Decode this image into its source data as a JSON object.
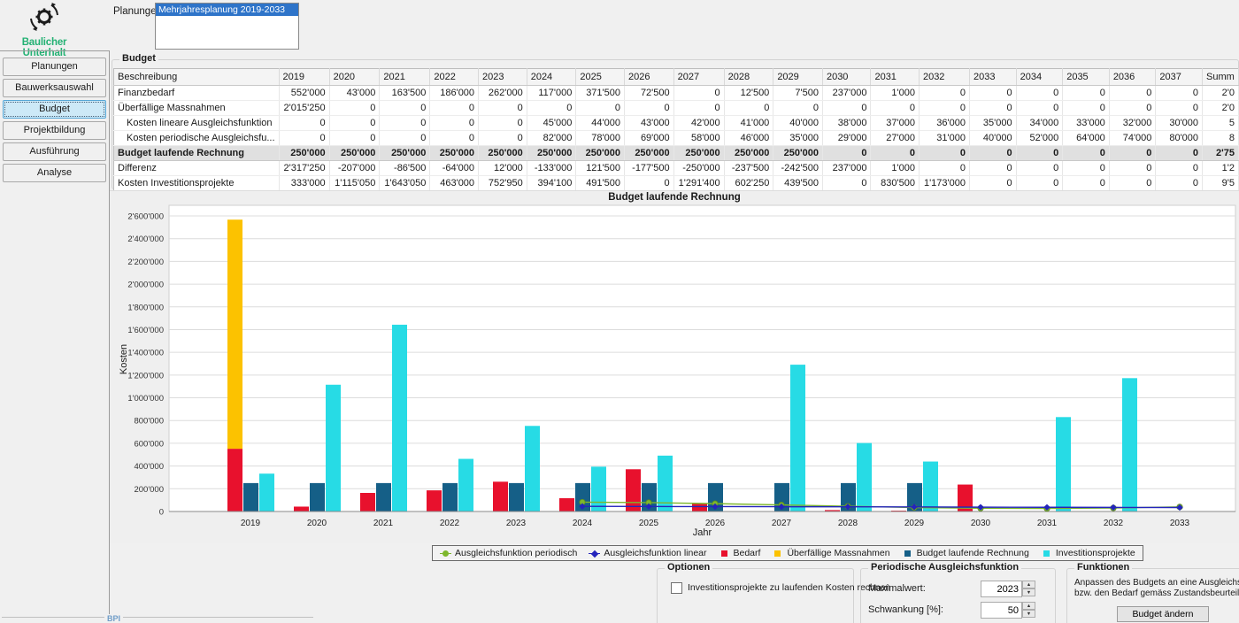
{
  "app": {
    "logo_text": "Baulicher Unterhalt",
    "accent_green": "#23b173"
  },
  "planungen": {
    "label": "Planungen:",
    "selected_item": "Mehrjahresplanung 2019-2033"
  },
  "sidebar": {
    "items": [
      {
        "id": "planungen",
        "label": "Planungen",
        "active": false
      },
      {
        "id": "bauwerksauswahl",
        "label": "Bauwerksauswahl",
        "active": false
      },
      {
        "id": "budget",
        "label": "Budget",
        "active": true
      },
      {
        "id": "projektbildung",
        "label": "Projektbildung",
        "active": false
      },
      {
        "id": "ausfuehrung",
        "label": "Ausführung",
        "active": false
      },
      {
        "id": "analyse",
        "label": "Analyse",
        "active": false
      }
    ]
  },
  "budget_group": {
    "title": "Budget"
  },
  "table": {
    "columns": [
      "Beschreibung",
      "2019",
      "2020",
      "2021",
      "2022",
      "2023",
      "2024",
      "2025",
      "2026",
      "2027",
      "2028",
      "2029",
      "2030",
      "2031",
      "2032",
      "2033",
      "2034",
      "2035",
      "2036",
      "2037",
      "Summ"
    ],
    "rows": [
      {
        "label": "Finanzbedarf",
        "indent": false,
        "bold": false,
        "values": [
          "552'000",
          "43'000",
          "163'500",
          "186'000",
          "262'000",
          "117'000",
          "371'500",
          "72'500",
          "0",
          "12'500",
          "7'500",
          "237'000",
          "1'000",
          "0",
          "0",
          "0",
          "0",
          "0",
          "0"
        ],
        "summ": "2'0"
      },
      {
        "label": "Überfällige Massnahmen",
        "indent": false,
        "bold": false,
        "values": [
          "2'015'250",
          "0",
          "0",
          "0",
          "0",
          "0",
          "0",
          "0",
          "0",
          "0",
          "0",
          "0",
          "0",
          "0",
          "0",
          "0",
          "0",
          "0",
          "0"
        ],
        "summ": "2'0"
      },
      {
        "label": "Kosten lineare Ausgleichsfunktion",
        "indent": true,
        "bold": false,
        "values": [
          "0",
          "0",
          "0",
          "0",
          "0",
          "45'000",
          "44'000",
          "43'000",
          "42'000",
          "41'000",
          "40'000",
          "38'000",
          "37'000",
          "36'000",
          "35'000",
          "34'000",
          "33'000",
          "32'000",
          "30'000"
        ],
        "summ": "5"
      },
      {
        "label": "Kosten periodische Ausgleichsfu...",
        "indent": true,
        "bold": false,
        "values": [
          "0",
          "0",
          "0",
          "0",
          "0",
          "82'000",
          "78'000",
          "69'000",
          "58'000",
          "46'000",
          "35'000",
          "29'000",
          "27'000",
          "31'000",
          "40'000",
          "52'000",
          "64'000",
          "74'000",
          "80'000"
        ],
        "summ": "8"
      },
      {
        "label": "Budget laufende Rechnung",
        "indent": false,
        "bold": true,
        "values": [
          "250'000",
          "250'000",
          "250'000",
          "250'000",
          "250'000",
          "250'000",
          "250'000",
          "250'000",
          "250'000",
          "250'000",
          "250'000",
          "0",
          "0",
          "0",
          "0",
          "0",
          "0",
          "0",
          "0"
        ],
        "summ": "2'75"
      },
      {
        "label": "Differenz",
        "indent": false,
        "bold": false,
        "values": [
          "2'317'250",
          "-207'000",
          "-86'500",
          "-64'000",
          "12'000",
          "-133'000",
          "121'500",
          "-177'500",
          "-250'000",
          "-237'500",
          "-242'500",
          "237'000",
          "1'000",
          "0",
          "0",
          "0",
          "0",
          "0",
          "0"
        ],
        "summ": "1'2"
      },
      {
        "label": "Kosten Investitionsprojekte",
        "indent": false,
        "bold": false,
        "values": [
          "333'000",
          "1'115'050",
          "1'643'050",
          "463'000",
          "752'950",
          "394'100",
          "491'500",
          "0",
          "1'291'400",
          "602'250",
          "439'500",
          "0",
          "830'500",
          "1'173'000",
          "0",
          "0",
          "0",
          "0",
          "0"
        ],
        "summ": "9'5"
      }
    ]
  },
  "chart_data": {
    "type": "bar",
    "title": "Budget laufende Rechnung",
    "xlabel": "Jahr",
    "ylabel": "Kosten",
    "categories": [
      "2019",
      "2020",
      "2021",
      "2022",
      "2023",
      "2024",
      "2025",
      "2026",
      "2027",
      "2028",
      "2029",
      "2030",
      "2031",
      "2032",
      "2033"
    ],
    "ylim": [
      0,
      2600000
    ],
    "y_tick_step": 200000,
    "y_ticks": [
      "0",
      "200'000",
      "400'000",
      "600'000",
      "800'000",
      "1'000'000",
      "1'200'000",
      "1'400'000",
      "1'600'000",
      "1'800'000",
      "2'000'000",
      "2'200'000",
      "2'400'000",
      "2'600'000"
    ],
    "grid": true,
    "legend_position": "bottom",
    "series": [
      {
        "name": "Bedarf",
        "kind": "bar",
        "color": "#e8112d",
        "values": [
          552000,
          43000,
          163500,
          186000,
          262000,
          117000,
          371500,
          72500,
          0,
          12500,
          7500,
          237000,
          1000,
          0,
          0
        ]
      },
      {
        "name": "Überfällige Massnahmen",
        "kind": "bar",
        "stack_on": "Bedarf",
        "color": "#fcc200",
        "values": [
          2015250,
          0,
          0,
          0,
          0,
          0,
          0,
          0,
          0,
          0,
          0,
          0,
          0,
          0,
          0
        ]
      },
      {
        "name": "Budget laufende Rechnung",
        "kind": "bar",
        "color": "#155f87",
        "values": [
          250000,
          250000,
          250000,
          250000,
          250000,
          250000,
          250000,
          250000,
          250000,
          250000,
          250000,
          0,
          0,
          0,
          0
        ]
      },
      {
        "name": "Investitionsprojekte",
        "kind": "bar",
        "color": "#27dbe5",
        "values": [
          333000,
          1115050,
          1643050,
          463000,
          752950,
          394100,
          491500,
          0,
          1291400,
          602250,
          439500,
          0,
          830500,
          1173000,
          0
        ]
      },
      {
        "name": "Ausgleichsfunktion periodisch",
        "kind": "line",
        "marker": "circle",
        "color": "#7db72c",
        "values": [
          null,
          null,
          null,
          null,
          null,
          82000,
          78000,
          69000,
          58000,
          46000,
          35000,
          29000,
          27000,
          31000,
          40000
        ]
      },
      {
        "name": "Ausgleichsfunktion linear",
        "kind": "line",
        "marker": "diamond",
        "color": "#2424bc",
        "values": [
          null,
          null,
          null,
          null,
          null,
          45000,
          44000,
          43000,
          42000,
          41000,
          40000,
          38000,
          37000,
          36000,
          35000
        ]
      }
    ],
    "legend": [
      {
        "label": "Ausgleichsfunktion periodisch",
        "color": "#7db72c",
        "marker": "circle"
      },
      {
        "label": "Ausgleichsfunktion linear",
        "color": "#2424bc",
        "marker": "diamond"
      },
      {
        "label": "Bedarf",
        "color": "#e8112d",
        "marker": "square"
      },
      {
        "label": "Überfällige Massnahmen",
        "color": "#fcc200",
        "marker": "square"
      },
      {
        "label": "Budget laufende Rechnung",
        "color": "#155f87",
        "marker": "square"
      },
      {
        "label": "Investitionsprojekte",
        "color": "#27dbe5",
        "marker": "square"
      }
    ]
  },
  "options_panel": {
    "title": "Optionen",
    "checkbox_label": "Investitionsprojekte zu laufenden Kosten rechnen",
    "checked": false
  },
  "periodic_panel": {
    "title": "Periodische Ausgleichsfunktion",
    "maximalwert_label": "Maximalwert:",
    "maximalwert": "2023",
    "schwankung_label": "Schwankung [%]:",
    "schwankung": "50"
  },
  "functions_panel": {
    "title": "Funktionen",
    "line1": "Anpassen des Budgets an eine Ausgleichsfunktion",
    "line2": "bzw. den Bedarf gemäss Zustandsbeurteilung.",
    "button_label": "Budget ändern"
  },
  "bottom_left": {
    "label": "BPI"
  }
}
